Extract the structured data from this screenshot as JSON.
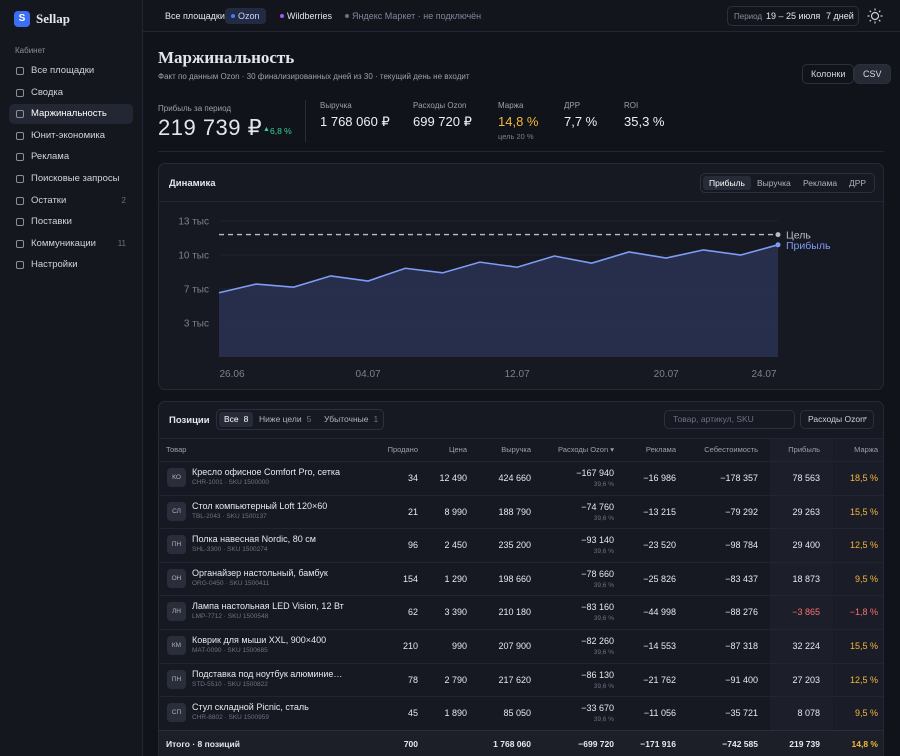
{
  "sidebar": {
    "logo": "S",
    "brand": "Sellap",
    "section": "Кабинет",
    "items": [
      {
        "label": "Все площадки"
      },
      {
        "label": "Сводка"
      },
      {
        "label": "Маржинальность",
        "active": true
      },
      {
        "label": "Юнит-экономика"
      },
      {
        "label": "Реклама"
      },
      {
        "label": "Поисковые запросы"
      },
      {
        "label": "Остатки",
        "badge": "2"
      },
      {
        "label": "Поставки"
      },
      {
        "label": "Коммуникации",
        "badge": "11"
      },
      {
        "label": "Настройки"
      }
    ]
  },
  "topbar": {
    "tabs": [
      {
        "label": "Все площадки",
        "dot": null
      },
      {
        "label": "Ozon",
        "dot": "#3b82f6",
        "active": true
      },
      {
        "label": "Wildberries",
        "dot": "#a855f7"
      },
      {
        "label": "Яндекс Маркет · не подключён",
        "dot": "#6b7280",
        "muted": true
      }
    ],
    "period_label": "Период",
    "period": "19 – 25 июля",
    "preset": "7 дней"
  },
  "header": {
    "title": "Маржинальность",
    "subtitle": "Факт по данным Ozon · 30 финализированных дней из 30 · текущий день не входит",
    "buttons": [
      "Колонки",
      "CSV"
    ]
  },
  "kpis": {
    "main": {
      "label": "Прибыль за период",
      "value": "219 739 ₽",
      "delta": "6,8 %"
    },
    "items": [
      {
        "label": "Выручка",
        "value": "1 768 060 ₽"
      },
      {
        "label": "Расходы Ozon",
        "value": "699 720 ₽"
      },
      {
        "label": "Маржа",
        "value": "14,8 %",
        "note": "цель 20 %",
        "accent": true
      },
      {
        "label": "ДРР",
        "value": "7,7 %"
      },
      {
        "label": "ROI",
        "value": "35,3 %"
      }
    ]
  },
  "chart_panel": {
    "title": "Динамика",
    "tabs": [
      "Прибыль",
      "Выручка",
      "Реклама",
      "ДРР"
    ],
    "active_tab": 0
  },
  "chart_data": {
    "type": "line",
    "categories": [
      "26.06",
      null,
      null,
      null,
      "04.07",
      null,
      null,
      null,
      "12.07",
      null,
      null,
      null,
      "20.07",
      null,
      null,
      "24.07"
    ],
    "series": [
      {
        "name": "Прибыль",
        "color": "#7f9cf5",
        "values": [
          6300,
          7150,
          6850,
          7950,
          7450,
          8700,
          8250,
          9300,
          8800,
          9900,
          9200,
          10300,
          9700,
          10500,
          10000,
          11000
        ]
      }
    ],
    "goal": {
      "name": "Цель",
      "value": 12000,
      "color": "#b8bcc6"
    },
    "ylim": [
      0,
      15000
    ],
    "yticks": [
      {
        "value": 3333,
        "label": "3 тыс"
      },
      {
        "value": 6667,
        "label": "7 тыс"
      },
      {
        "value": 10000,
        "label": "10 тыс"
      },
      {
        "value": 13333,
        "label": "13 тыс"
      }
    ],
    "grid": true
  },
  "table": {
    "title": "Позиции",
    "filters": [
      {
        "label": "Все",
        "count": "8",
        "active": true
      },
      {
        "label": "Ниже цели",
        "count": "5"
      },
      {
        "label": "Убыточные",
        "count": "1"
      }
    ],
    "search": "Товар, артикул, SKU",
    "dropdown": "Расходы Ozon",
    "columns": [
      "Товар",
      "Продано",
      "Цена",
      "Выручка",
      "Расходы Ozon ▾",
      "Реклама",
      "Себестоимость",
      "Прибыль",
      "Маржа"
    ],
    "rows": [
      {
        "avatar": "КО",
        "name": "Кресло офисное Comfort Pro, сетка",
        "sku": "CHR-1001 · SKU 1500000",
        "sold": "34",
        "price": "12 490",
        "revenue": "424 660",
        "expenses": "−167 940",
        "exp_pct": "39,6 %",
        "ads": "−16 986",
        "cost": "−178 357",
        "profit": "78 563",
        "margin": "18,5 %"
      },
      {
        "avatar": "СЛ",
        "name": "Стол компьютерный Loft 120×60",
        "sku": "TBL-2043 · SKU 1500137",
        "sold": "21",
        "price": "8 990",
        "revenue": "188 790",
        "expenses": "−74 760",
        "exp_pct": "39,6 %",
        "ads": "−13 215",
        "cost": "−79 292",
        "profit": "29 263",
        "margin": "15,5 %"
      },
      {
        "avatar": "ПН",
        "name": "Полка навесная Nordic, 80 см",
        "sku": "SHL-3300 · SKU 1500274",
        "sold": "96",
        "price": "2 450",
        "revenue": "235 200",
        "expenses": "−93 140",
        "exp_pct": "39,6 %",
        "ads": "−23 520",
        "cost": "−98 784",
        "profit": "29 400",
        "margin": "12,5 %"
      },
      {
        "avatar": "ОН",
        "name": "Органайзер настольный, бамбук",
        "sku": "ORG-0450 · SKU 1500411",
        "sold": "154",
        "price": "1 290",
        "revenue": "198 660",
        "expenses": "−78 660",
        "exp_pct": "39,6 %",
        "ads": "−25 826",
        "cost": "−83 437",
        "profit": "18 873",
        "margin": "9,5 %"
      },
      {
        "avatar": "ЛН",
        "name": "Лампа настольная LED Vision, 12 Вт",
        "sku": "LMP-7712 · SKU 1500548",
        "sold": "62",
        "price": "3 390",
        "revenue": "210 180",
        "expenses": "−83 160",
        "exp_pct": "39,6 %",
        "ads": "−44 998",
        "cost": "−88 276",
        "profit": "−3 865",
        "margin": "−1,8 %",
        "loss": true
      },
      {
        "avatar": "КМ",
        "name": "Коврик для мыши XXL, 900×400",
        "sku": "MAT-0090 · SKU 1500685",
        "sold": "210",
        "price": "990",
        "revenue": "207 900",
        "expenses": "−82 260",
        "exp_pct": "39,6 %",
        "ads": "−14 553",
        "cost": "−87 318",
        "profit": "32 224",
        "margin": "15,5 %"
      },
      {
        "avatar": "ПН",
        "name": "Подставка под ноутбук алюминие…",
        "sku": "STD-5510 · SKU 1500822",
        "sold": "78",
        "price": "2 790",
        "revenue": "217 620",
        "expenses": "−86 130",
        "exp_pct": "39,6 %",
        "ads": "−21 762",
        "cost": "−91 400",
        "profit": "27 203",
        "margin": "12,5 %"
      },
      {
        "avatar": "СП",
        "name": "Стул складной Picnic, сталь",
        "sku": "CHR-8802 · SKU 1500959",
        "sold": "45",
        "price": "1 890",
        "revenue": "85 050",
        "expenses": "−33 670",
        "exp_pct": "39,6 %",
        "ads": "−11 056",
        "cost": "−35 721",
        "profit": "8 078",
        "margin": "9,5 %"
      }
    ],
    "total": {
      "label": "Итого · 8 позиций",
      "sold": "700",
      "revenue": "1 768 060",
      "expenses": "−699 720",
      "ads": "−171 916",
      "cost": "−742 585",
      "profit": "219 739",
      "margin": "14,8 %"
    }
  }
}
